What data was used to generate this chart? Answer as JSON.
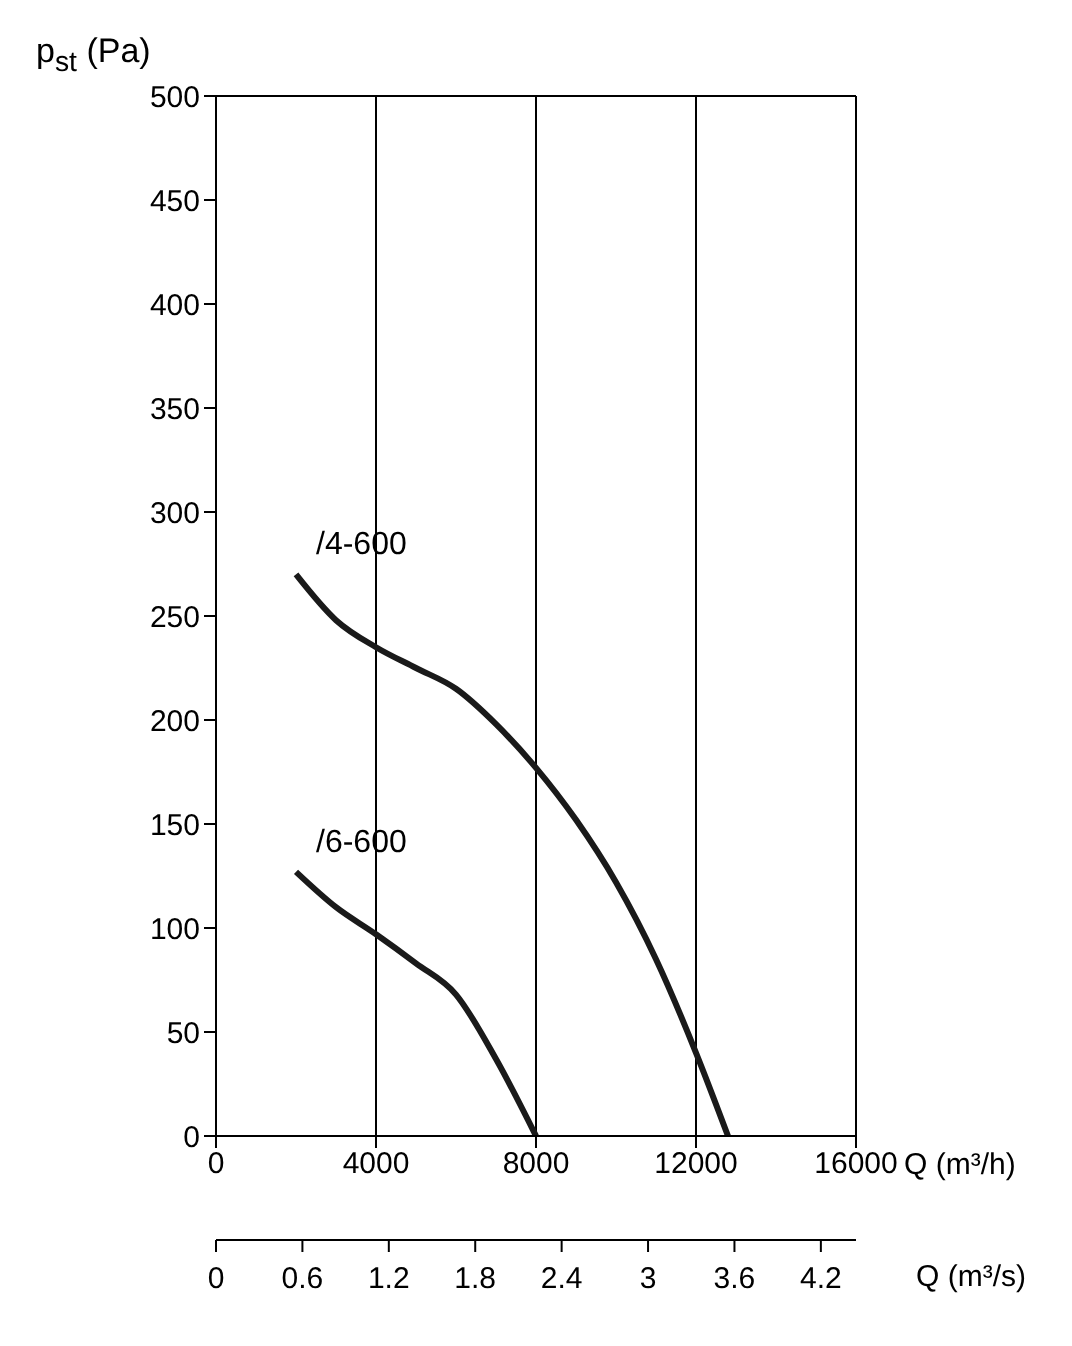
{
  "chart_data": {
    "type": "line",
    "xlabel": "Q (m³/h)",
    "x2label": "Q (m³/s)",
    "ylabel": "p$_{st}$ (Pa)",
    "xlim": [
      0,
      16000
    ],
    "xticks": [
      0,
      4000,
      8000,
      12000,
      16000
    ],
    "x2lim": [
      0,
      4.444
    ],
    "x2ticks": [
      0,
      0.6,
      1.2,
      1.8,
      2.4,
      3,
      3.6,
      4.2
    ],
    "ylim": [
      0,
      500
    ],
    "yticks": [
      0,
      50,
      100,
      150,
      200,
      250,
      300,
      350,
      400,
      450,
      500
    ],
    "grid": "x",
    "line_style": "solid",
    "series": [
      {
        "name": "/4-600",
        "color": "#1a1a1a",
        "x": [
          2000,
          3000,
          4000,
          5000,
          6000,
          7000,
          8000,
          9000,
          10000,
          11000,
          12000,
          12800
        ],
        "values": [
          270,
          248,
          235,
          225,
          215,
          198,
          177,
          152,
          122,
          85,
          40,
          0
        ]
      },
      {
        "name": "/6-600",
        "color": "#1a1a1a",
        "x": [
          2000,
          3000,
          4000,
          5000,
          6000,
          7000,
          8000
        ],
        "values": [
          127,
          110,
          97,
          83,
          68,
          37,
          0
        ]
      }
    ]
  }
}
